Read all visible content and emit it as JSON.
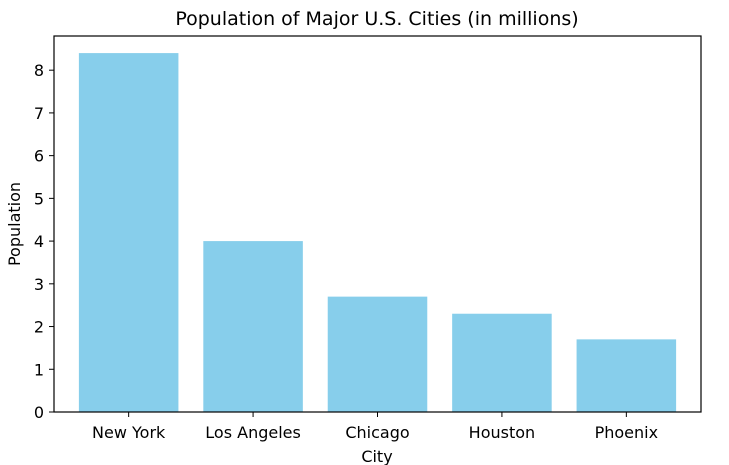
{
  "chart_data": {
    "type": "bar",
    "title": "Population of Major U.S. Cities (in millions)",
    "xlabel": "City",
    "ylabel": "Population",
    "categories": [
      "New York",
      "Los Angeles",
      "Chicago",
      "Houston",
      "Phoenix"
    ],
    "values": [
      8.4,
      4.0,
      2.7,
      2.3,
      1.7
    ],
    "ylim": [
      0,
      8.8
    ],
    "yticks": [
      0,
      1,
      2,
      3,
      4,
      5,
      6,
      7,
      8
    ],
    "grid": false,
    "legend": "none",
    "bar_color": "#87CEEB"
  }
}
